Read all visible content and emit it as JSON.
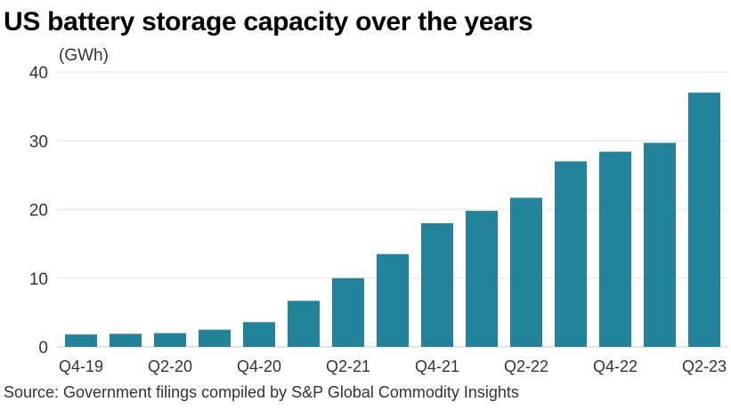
{
  "chart_data": {
    "type": "bar",
    "title": "US battery storage capacity over the years",
    "ylabel": "(GWh)",
    "xlabel": "",
    "categories": [
      "Q4-19",
      "Q1-20",
      "Q2-20",
      "Q3-20",
      "Q4-20",
      "Q1-21",
      "Q2-21",
      "Q3-21",
      "Q4-21",
      "Q1-22",
      "Q2-22",
      "Q3-22",
      "Q4-22",
      "Q1-23",
      "Q2-23"
    ],
    "x_tick_labels": [
      "Q4-19",
      "Q2-20",
      "Q4-20",
      "Q2-21",
      "Q4-21",
      "Q2-22",
      "Q4-22",
      "Q2-23"
    ],
    "values": [
      1.8,
      1.9,
      2.0,
      2.5,
      3.6,
      6.7,
      10.0,
      13.5,
      18.0,
      19.8,
      21.7,
      27.0,
      28.4,
      29.7,
      37.0
    ],
    "ylim": [
      0,
      40
    ],
    "yticks": [
      0,
      10,
      20,
      30,
      40
    ],
    "grid": true,
    "bar_color": "#23839a",
    "source": "Source: Government filings compiled by S&P Global Commodity Insights"
  }
}
